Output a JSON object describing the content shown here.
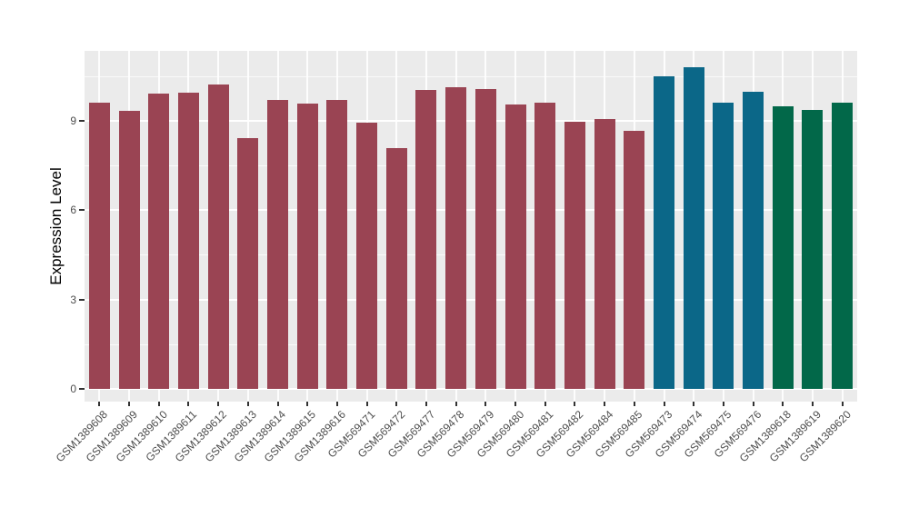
{
  "figure": {
    "background": "#FFFFFF",
    "panel_bg": "#EBEBEB",
    "grid_color": "#FFFFFF",
    "axis_text_color": "#4D4D4D",
    "axis_title_color": "#000000"
  },
  "chart_data": {
    "type": "bar",
    "title": "",
    "xlabel": "",
    "ylabel": "Expression Level",
    "ylim": [
      0,
      11.35
    ],
    "y_ticks": [
      0,
      3,
      6,
      9
    ],
    "y_tick_labels": [
      "0",
      "3",
      "6",
      "9"
    ],
    "y_minor_gridlines": [
      1.5,
      4.5,
      7.5,
      10.5
    ],
    "grid": true,
    "legend_position": "none",
    "categories": [
      "GSM1389608",
      "GSM1389609",
      "GSM1389610",
      "GSM1389611",
      "GSM1389612",
      "GSM1389613",
      "GSM1389614",
      "GSM1389615",
      "GSM1389616",
      "GSM569471",
      "GSM569472",
      "GSM569477",
      "GSM569478",
      "GSM569479",
      "GSM569480",
      "GSM569481",
      "GSM569482",
      "GSM569484",
      "GSM569485",
      "GSM569473",
      "GSM569474",
      "GSM569475",
      "GSM569476",
      "GSM1389618",
      "GSM1389619",
      "GSM1389620"
    ],
    "values": [
      9.6,
      9.33,
      9.91,
      9.94,
      10.23,
      8.42,
      9.69,
      9.58,
      9.7,
      8.94,
      8.08,
      10.04,
      10.13,
      10.07,
      9.55,
      9.61,
      8.97,
      9.06,
      8.66,
      10.48,
      10.8,
      9.61,
      9.97,
      9.49,
      9.37,
      9.61
    ],
    "groups": [
      "maroon",
      "maroon",
      "maroon",
      "maroon",
      "maroon",
      "maroon",
      "maroon",
      "maroon",
      "maroon",
      "maroon",
      "maroon",
      "maroon",
      "maroon",
      "maroon",
      "maroon",
      "maroon",
      "maroon",
      "maroon",
      "maroon",
      "teal",
      "teal",
      "teal",
      "teal",
      "green",
      "green",
      "green"
    ],
    "palette": {
      "maroon": "#9A4453",
      "teal": "#0B6788",
      "green": "#026849"
    }
  }
}
